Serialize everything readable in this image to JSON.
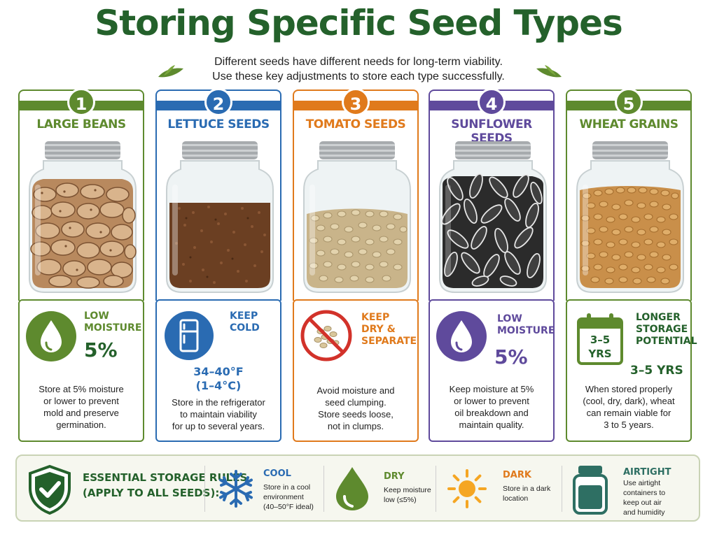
{
  "header": {
    "title": "Storing Specific Seed Types",
    "subtitle_line1": "Different seeds have different needs for long-term viability.",
    "subtitle_line2": "Use these key adjustments to store each type successfully."
  },
  "colors": {
    "green": "#5e8a2e",
    "blue": "#2a6bb2",
    "orange": "#e07a1c",
    "purple": "#5f4a9c",
    "title_green": "#24612b"
  },
  "cards": [
    {
      "number": "1",
      "name": "LARGE BEANS",
      "icon": "water-drop-icon",
      "label_line1": "LOW",
      "label_line2": "MOISTURE",
      "value": "5%",
      "desc": [
        "Store at 5% moisture",
        "or lower to prevent",
        "mold and preserve",
        "germination."
      ]
    },
    {
      "number": "2",
      "name": "LETTUCE SEEDS",
      "icon": "refrigerator-icon",
      "label_line1": "KEEP",
      "label_line2": "COLD",
      "value_line1": "34–40°F",
      "value_line2": "(1–4°C)",
      "desc": [
        "Store in the refrigerator",
        "to maintain viability",
        "for up to several years."
      ]
    },
    {
      "number": "3",
      "name": "TOMATO SEEDS",
      "icon": "no-clumping-icon",
      "label_line1": "KEEP",
      "label_line2": "DRY &",
      "label_line3": "SEPARATE",
      "desc": [
        "Avoid moisture and",
        "seed clumping.",
        "Store seeds loose,",
        "not in clumps."
      ]
    },
    {
      "number": "4",
      "name": "SUNFLOWER SEEDS",
      "icon": "water-drop-icon",
      "label_line1": "LOW",
      "label_line2": "MOISTURE",
      "value": "5%",
      "desc": [
        "Keep moisture at 5%",
        "or lower to prevent",
        "oil breakdown and",
        "maintain quality."
      ]
    },
    {
      "number": "5",
      "name": "WHEAT GRAINS",
      "icon": "calendar-icon",
      "calendar_line1": "3–5",
      "calendar_line2": "YRS",
      "label_line1": "LONGER",
      "label_line2": "STORAGE",
      "label_line3": "POTENTIAL",
      "value": "3–5 YRS",
      "desc": [
        "When stored properly",
        "(cool, dry, dark), wheat",
        "can remain viable for",
        "3 to 5 years."
      ]
    }
  ],
  "rules": {
    "head_line1": "ESSENTIAL STORAGE RULES",
    "head_line2": "(APPLY TO ALL SEEDS):",
    "items": [
      {
        "icon": "snowflake-icon",
        "title": "COOL",
        "desc": [
          "Store in a cool",
          "environment",
          "(40–50°F ideal)"
        ]
      },
      {
        "icon": "water-drop-icon",
        "title": "DRY",
        "desc": [
          "Keep moisture",
          "low (≤5%)"
        ]
      },
      {
        "icon": "sun-icon",
        "title": "DARK",
        "desc": [
          "Store in a dark",
          "location"
        ]
      },
      {
        "icon": "jar-icon",
        "title": "AIRTIGHT",
        "desc": [
          "Use airtight",
          "containers to",
          "keep out air",
          "and humidity"
        ]
      }
    ]
  }
}
